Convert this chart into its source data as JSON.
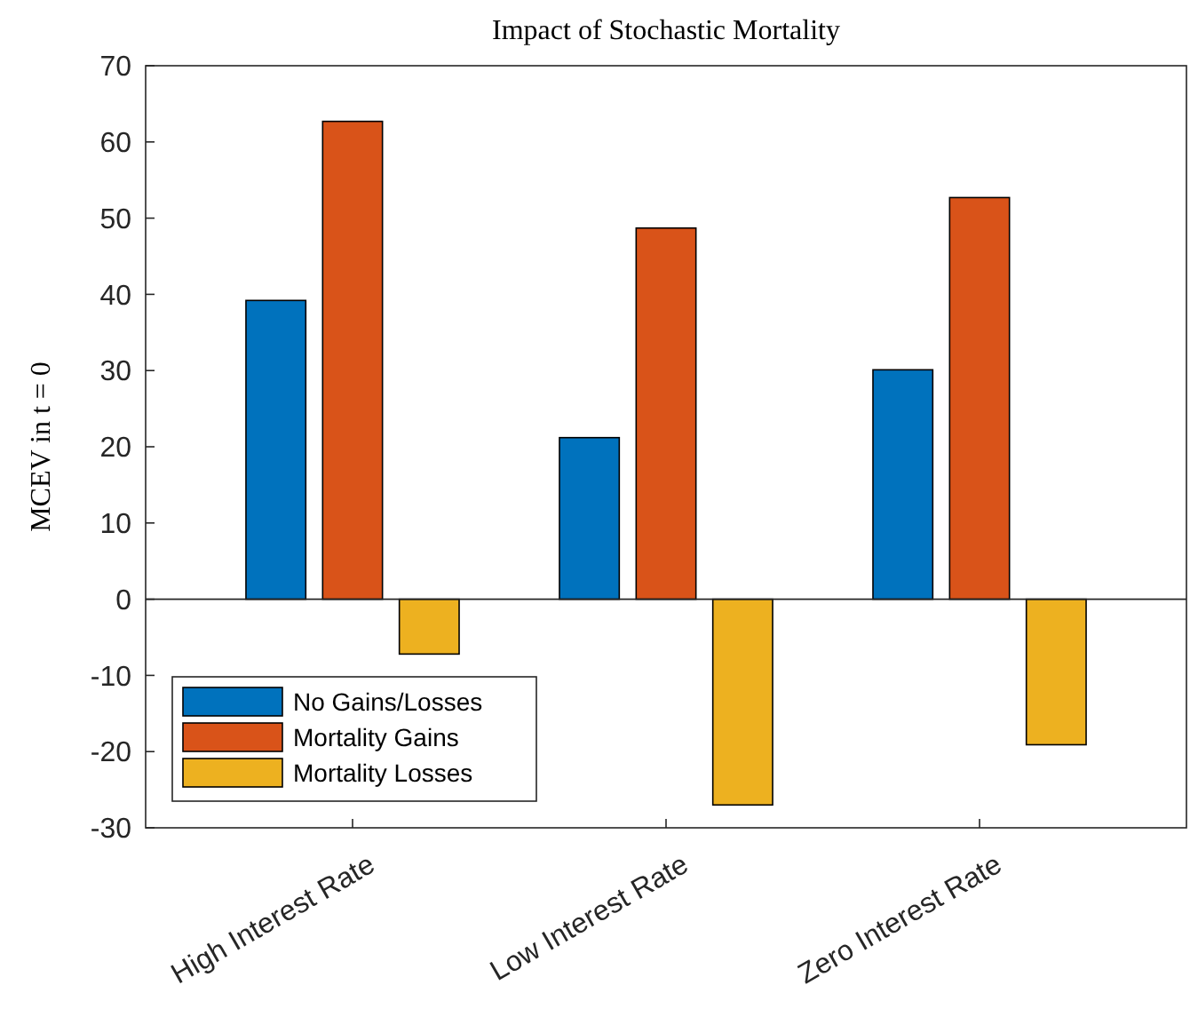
{
  "chart_data": {
    "type": "bar",
    "title": "Impact of Stochastic Mortality",
    "ylabel": "MCEV in t = 0",
    "categories": [
      "High Interest Rate",
      "Low Interest Rate",
      "Zero Interest Rate"
    ],
    "series": [
      {
        "name": "No Gains/Losses",
        "color": "#0072bd",
        "values": [
          39.2,
          21.2,
          30.1
        ]
      },
      {
        "name": "Mortality Gains",
        "color": "#d95319",
        "values": [
          62.7,
          48.7,
          52.7
        ]
      },
      {
        "name": "Mortality Losses",
        "color": "#edb120",
        "values": [
          -7.2,
          -27,
          -19.1
        ]
      }
    ],
    "ylim": [
      -30,
      70
    ],
    "yticks": [
      -30,
      -20,
      -10,
      0,
      10,
      20,
      30,
      40,
      50,
      60,
      70
    ],
    "legend": "bottom left"
  }
}
